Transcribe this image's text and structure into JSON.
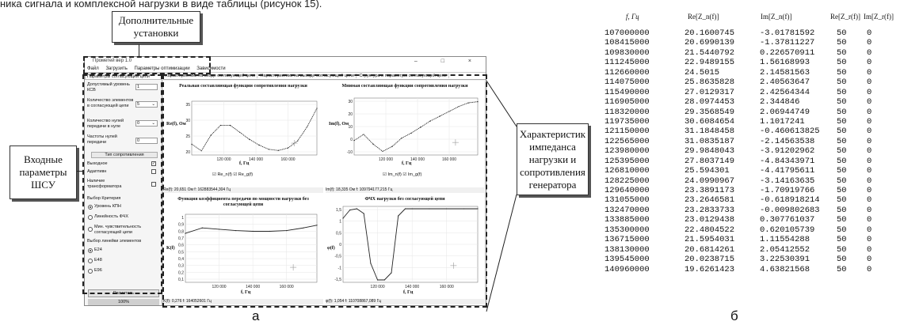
{
  "header_text": "ника сигнала и комплексной нагрузки в виде таблицы (рисунок 15).",
  "callouts": {
    "additional": "Дополнительные установки",
    "input_params": "Входные параметры ШСУ",
    "characteristics": "Характеристик импеданса нагрузки и сопротивления генератора"
  },
  "window": {
    "title": "Прометей вер 1.0",
    "controls": "–  □  ×",
    "menu": [
      "Файл",
      "Загрузить",
      "Параметры оптимизации",
      "Зависимости"
    ],
    "left_tab": "Параметры согласующей цепи",
    "fields": {
      "vswr_label": "Допустимый уровень КСВ",
      "vswr_value": "1",
      "elements_label": "Количество элементов в согласующей цепи",
      "elements_value": "5",
      "zeros_label": "Количество нулей передачи в нуле",
      "zeros_value": "0",
      "freq_label": "Частоты нулей передачи",
      "freq_value": "0",
      "resistance_type": "Тип сопротивления",
      "output_label": "Выходное",
      "adaptive_label": "Адаптивн",
      "transformer_label": "Наличие трансформатора"
    },
    "criteria_title": "Выбор Критерия",
    "criteria": [
      "Уровень КПН",
      "Линейность ФЧХ",
      "Мин. чувствительность согласующей цепи"
    ],
    "series_title": "Выбор линейки элементов",
    "series": [
      "E24",
      "E48",
      "E96"
    ],
    "run_button": "Расчитать",
    "progress": "100%",
    "tabs": [
      "Характеристики на входе согласующей цепи",
      "Характеристики на выходе согласующей цепи",
      "Структура и параметры согласующей цепи"
    ],
    "status": {
      "p1": "Re(f): 20,651 Ом    f: 162883544,304 Гц",
      "p2": "Im(f): 18,335 Ом    f: 109794177,215 Гц",
      "p3": "K(f): 0,276    f: 164052601 Гц",
      "p4": "φ(f): 1,054    f: 110708867,089 Гц"
    }
  },
  "chart_data": [
    {
      "type": "line",
      "title": "Реальная составляющая функции сопротивления нагрузки",
      "xlabel": "f, Гц",
      "ylabel": "Re(f), Ом",
      "x_ticks": [
        "120 000",
        "140 000",
        "160 000"
      ],
      "y_ticks": [
        "35",
        "30",
        "25",
        "20"
      ],
      "ylim": [
        18,
        37
      ],
      "legend": "☑ Re_n(f) ☑ Re_g(f)",
      "series": [
        {
          "name": "Re_n(f)",
          "x": [
            100,
            106,
            112,
            118,
            124,
            130,
            136,
            142,
            148,
            154,
            160,
            166,
            172,
            178
          ],
          "values": [
            21.8,
            19.5,
            25.0,
            28.5,
            28.5,
            26.0,
            23.5,
            21.5,
            20.0,
            19.6,
            20.5,
            23.0,
            28.0,
            34.5
          ]
        }
      ]
    },
    {
      "type": "line",
      "title": "Мнимая составляющая функции сопротивления нагрузки",
      "xlabel": "f, Гц",
      "ylabel": "Im(f), Ом",
      "x_ticks": [
        "120 000",
        "140 000",
        "160 000"
      ],
      "y_ticks": [
        "30",
        "20",
        "10",
        "0",
        "-10"
      ],
      "ylim": [
        -15,
        32
      ],
      "legend": "☑ Im_n(f) ☑ Im_g(f)",
      "series": [
        {
          "name": "Im_n(f)",
          "x": [
            100,
            106,
            112,
            118,
            124,
            130,
            136,
            142,
            148,
            154,
            160,
            166,
            172,
            178
          ],
          "values": [
            -3,
            2,
            -6,
            -12,
            -8,
            -1,
            3,
            8,
            13,
            17,
            21,
            25,
            28,
            29
          ]
        }
      ]
    },
    {
      "type": "line",
      "title": "Функция коэффициента передачи по мощности нагрузки без согласующей цепи",
      "xlabel": "f, Гц",
      "ylabel": "K(f)",
      "x_ticks": [
        "120 000",
        "140 000",
        "160 000"
      ],
      "y_ticks": [
        "1",
        "0,9",
        "0,8",
        "0,7",
        "0,6",
        "0,5",
        "0,4",
        "0,3",
        "0,2",
        "0,1"
      ],
      "ylim": [
        0,
        1
      ],
      "series": [
        {
          "name": "K(f)",
          "x": [
            100,
            110,
            120,
            130,
            140,
            150,
            160,
            170,
            178
          ],
          "values": [
            0.72,
            0.8,
            0.78,
            0.76,
            0.75,
            0.75,
            0.76,
            0.8,
            0.84
          ]
        }
      ]
    },
    {
      "type": "line",
      "title": "ФЧХ нагрузки без согласующей цепи",
      "xlabel": "f, Гц",
      "ylabel": "φ(f)",
      "x_ticks": [
        "120 000",
        "140 000",
        "160 000"
      ],
      "y_ticks": [
        "1,5",
        "1",
        "0,5",
        "0",
        "-0,5",
        "-1",
        "-1,5"
      ],
      "ylim": [
        -1.6,
        1.6
      ],
      "series": [
        {
          "name": "φ(f)",
          "x": [
            100,
            104,
            108,
            112,
            116,
            120,
            124,
            128,
            132,
            136,
            140,
            150,
            160,
            170,
            178
          ],
          "values": [
            1.1,
            1.45,
            1.5,
            1.3,
            -0.8,
            -1.5,
            -1.5,
            -1.2,
            1.2,
            1.5,
            1.5,
            1.5,
            1.5,
            1.5,
            1.5
          ]
        }
      ]
    }
  ],
  "table": {
    "headers": [
      "f, Гц",
      "Re[Z_n(f)]",
      "Im[Z_n(f)]",
      "Re[Z_r(f)]",
      "Im[Z_r(f)]"
    ],
    "rows": [
      [
        "107000000",
        "20.1600745",
        "-3.01781592",
        "50",
        "0"
      ],
      [
        "108415000",
        "20.6990139",
        "-1.37811227",
        "50",
        "0"
      ],
      [
        "109830000",
        "21.5440792",
        "0.226570911",
        "50",
        "0"
      ],
      [
        "111245000",
        "22.9489155",
        "1.56168993",
        "50",
        "0"
      ],
      [
        "112660000",
        "24.5015",
        "2.14581563",
        "50",
        "0"
      ],
      [
        "114075000",
        "25.8635828",
        "2.40563647",
        "50",
        "0"
      ],
      [
        "115490000",
        "27.0129317",
        "2.42564344",
        "50",
        "0"
      ],
      [
        "116905000",
        "28.0974453",
        "2.344846",
        "50",
        "0"
      ],
      [
        "118320000",
        "29.3568549",
        "2.06944749",
        "50",
        "0"
      ],
      [
        "119735000",
        "30.6084654",
        "1.1017241",
        "50",
        "0"
      ],
      [
        "121150000",
        "31.1848458",
        "-0.460613825",
        "50",
        "0"
      ],
      [
        "122565000",
        "31.0835187",
        "-2.14563538",
        "50",
        "0"
      ],
      [
        "123980000",
        "29.9848043",
        "-3.91202962",
        "50",
        "0"
      ],
      [
        "125395000",
        "27.8037149",
        "-4.84343971",
        "50",
        "0"
      ],
      [
        "126810000",
        "25.594301",
        "-4.41795611",
        "50",
        "0"
      ],
      [
        "128225000",
        "24.0990967",
        "-3.14163635",
        "50",
        "0"
      ],
      [
        "129640000",
        "23.3891173",
        "-1.70919766",
        "50",
        "0"
      ],
      [
        "131055000",
        "23.2646581",
        "-0.618918214",
        "50",
        "0"
      ],
      [
        "132470000",
        "23.2833733",
        "-0.009802683",
        "50",
        "0"
      ],
      [
        "133885000",
        "23.0129438",
        "0.307761037",
        "50",
        "0"
      ],
      [
        "135300000",
        "22.4804522",
        "0.620105739",
        "50",
        "0"
      ],
      [
        "136715000",
        "21.5954031",
        "1.11554288",
        "50",
        "0"
      ],
      [
        "138130000",
        "20.6814261",
        "2.05412552",
        "50",
        "0"
      ],
      [
        "139545000",
        "20.0238715",
        "3.22530391",
        "50",
        "0"
      ],
      [
        "140960000",
        "19.6261423",
        "4.63821568",
        "50",
        "0"
      ]
    ]
  },
  "fig_labels": {
    "a": "а",
    "b": "б"
  }
}
